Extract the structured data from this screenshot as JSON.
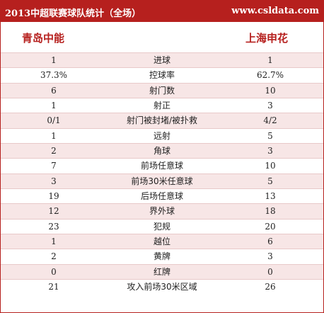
{
  "header": {
    "title": "2013中超联赛球队统计（全场）",
    "site": "www.csldata.com"
  },
  "teams": {
    "home": "青岛中能",
    "away": "上海申花"
  },
  "stats": [
    {
      "label": "进球",
      "home": "1",
      "away": "1"
    },
    {
      "label": "控球率",
      "home": "37.3%",
      "away": "62.7%"
    },
    {
      "label": "射门数",
      "home": "6",
      "away": "10"
    },
    {
      "label": "射正",
      "home": "1",
      "away": "3"
    },
    {
      "label": "射门被封堵/被扑救",
      "home": "0/1",
      "away": "4/2"
    },
    {
      "label": "远射",
      "home": "1",
      "away": "5"
    },
    {
      "label": "角球",
      "home": "2",
      "away": "3"
    },
    {
      "label": "前场任意球",
      "home": "7",
      "away": "10"
    },
    {
      "label": "前场30米任意球",
      "home": "3",
      "away": "5"
    },
    {
      "label": "后场任意球",
      "home": "19",
      "away": "13"
    },
    {
      "label": "界外球",
      "home": "12",
      "away": "18"
    },
    {
      "label": "犯规",
      "home": "23",
      "away": "20"
    },
    {
      "label": "越位",
      "home": "1",
      "away": "6"
    },
    {
      "label": "黄牌",
      "home": "2",
      "away": "3"
    },
    {
      "label": "红牌",
      "home": "0",
      "away": "0"
    },
    {
      "label": "攻入前场30米区域",
      "home": "21",
      "away": "26"
    }
  ],
  "colors": {
    "accent": "#b6201e",
    "row_alt": "#f7e6e6",
    "row_border": "#e8c9c9"
  }
}
